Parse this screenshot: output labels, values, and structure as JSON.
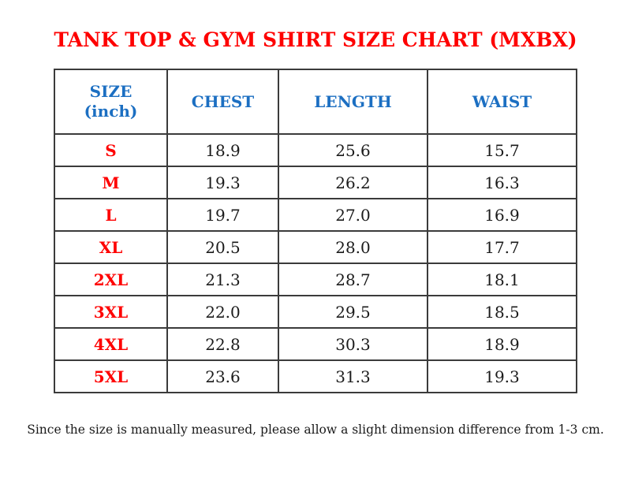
{
  "title": "TANK TOP & GYM SHIRT SIZE CHART (MXBX)",
  "colors": {
    "title_red": "#fe0000",
    "header_blue": "#1c6fc2",
    "size_label_red": "#fe0000",
    "value_text": "#1b1b1b",
    "table_border": "#3b3b3b",
    "background": "#ffffff"
  },
  "table": {
    "headers": {
      "size_line1": "SIZE",
      "size_line2": "(inch)",
      "chest": "CHEST",
      "length": "LENGTH",
      "waist": "WAIST"
    },
    "rows": [
      {
        "size": "S",
        "chest": "18.9",
        "length": "25.6",
        "waist": "15.7"
      },
      {
        "size": "M",
        "chest": "19.3",
        "length": "26.2",
        "waist": "16.3"
      },
      {
        "size": "L",
        "chest": "19.7",
        "length": "27.0",
        "waist": "16.9"
      },
      {
        "size": "XL",
        "chest": "20.5",
        "length": "28.0",
        "waist": "17.7"
      },
      {
        "size": "2XL",
        "chest": "21.3",
        "length": "28.7",
        "waist": "18.1"
      },
      {
        "size": "3XL",
        "chest": "22.0",
        "length": "29.5",
        "waist": "18.5"
      },
      {
        "size": "4XL",
        "chest": "22.8",
        "length": "30.3",
        "waist": "18.9"
      },
      {
        "size": "5XL",
        "chest": "23.6",
        "length": "31.3",
        "waist": "19.3"
      }
    ]
  },
  "note": "Since the size is manually measured, please allow a slight dimension difference from 1-3 cm."
}
